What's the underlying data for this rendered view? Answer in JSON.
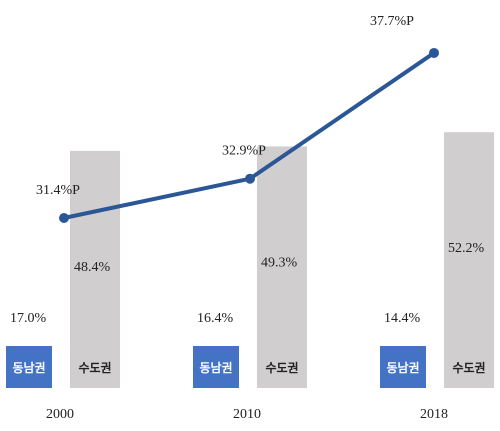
{
  "chart_data": {
    "type": "bar",
    "categories": [
      "2000",
      "2010",
      "2018"
    ],
    "series": [
      {
        "name": "동남권",
        "values": [
          17.0,
          16.4,
          14.4
        ],
        "labels": [
          "17.0%",
          "16.4%",
          "14.4%"
        ],
        "color": "#4472c4"
      },
      {
        "name": "수도권",
        "values": [
          48.4,
          49.3,
          52.2
        ],
        "labels": [
          "48.4%",
          "49.3%",
          "52.2%"
        ],
        "color": "#d0cece"
      }
    ],
    "line": {
      "values": [
        31.4,
        32.9,
        37.7
      ],
      "labels": [
        "31.4%P",
        "32.9%P",
        "37.7%P"
      ],
      "color": "#2b5797"
    },
    "title": "",
    "xlabel": "",
    "ylabel": ""
  }
}
